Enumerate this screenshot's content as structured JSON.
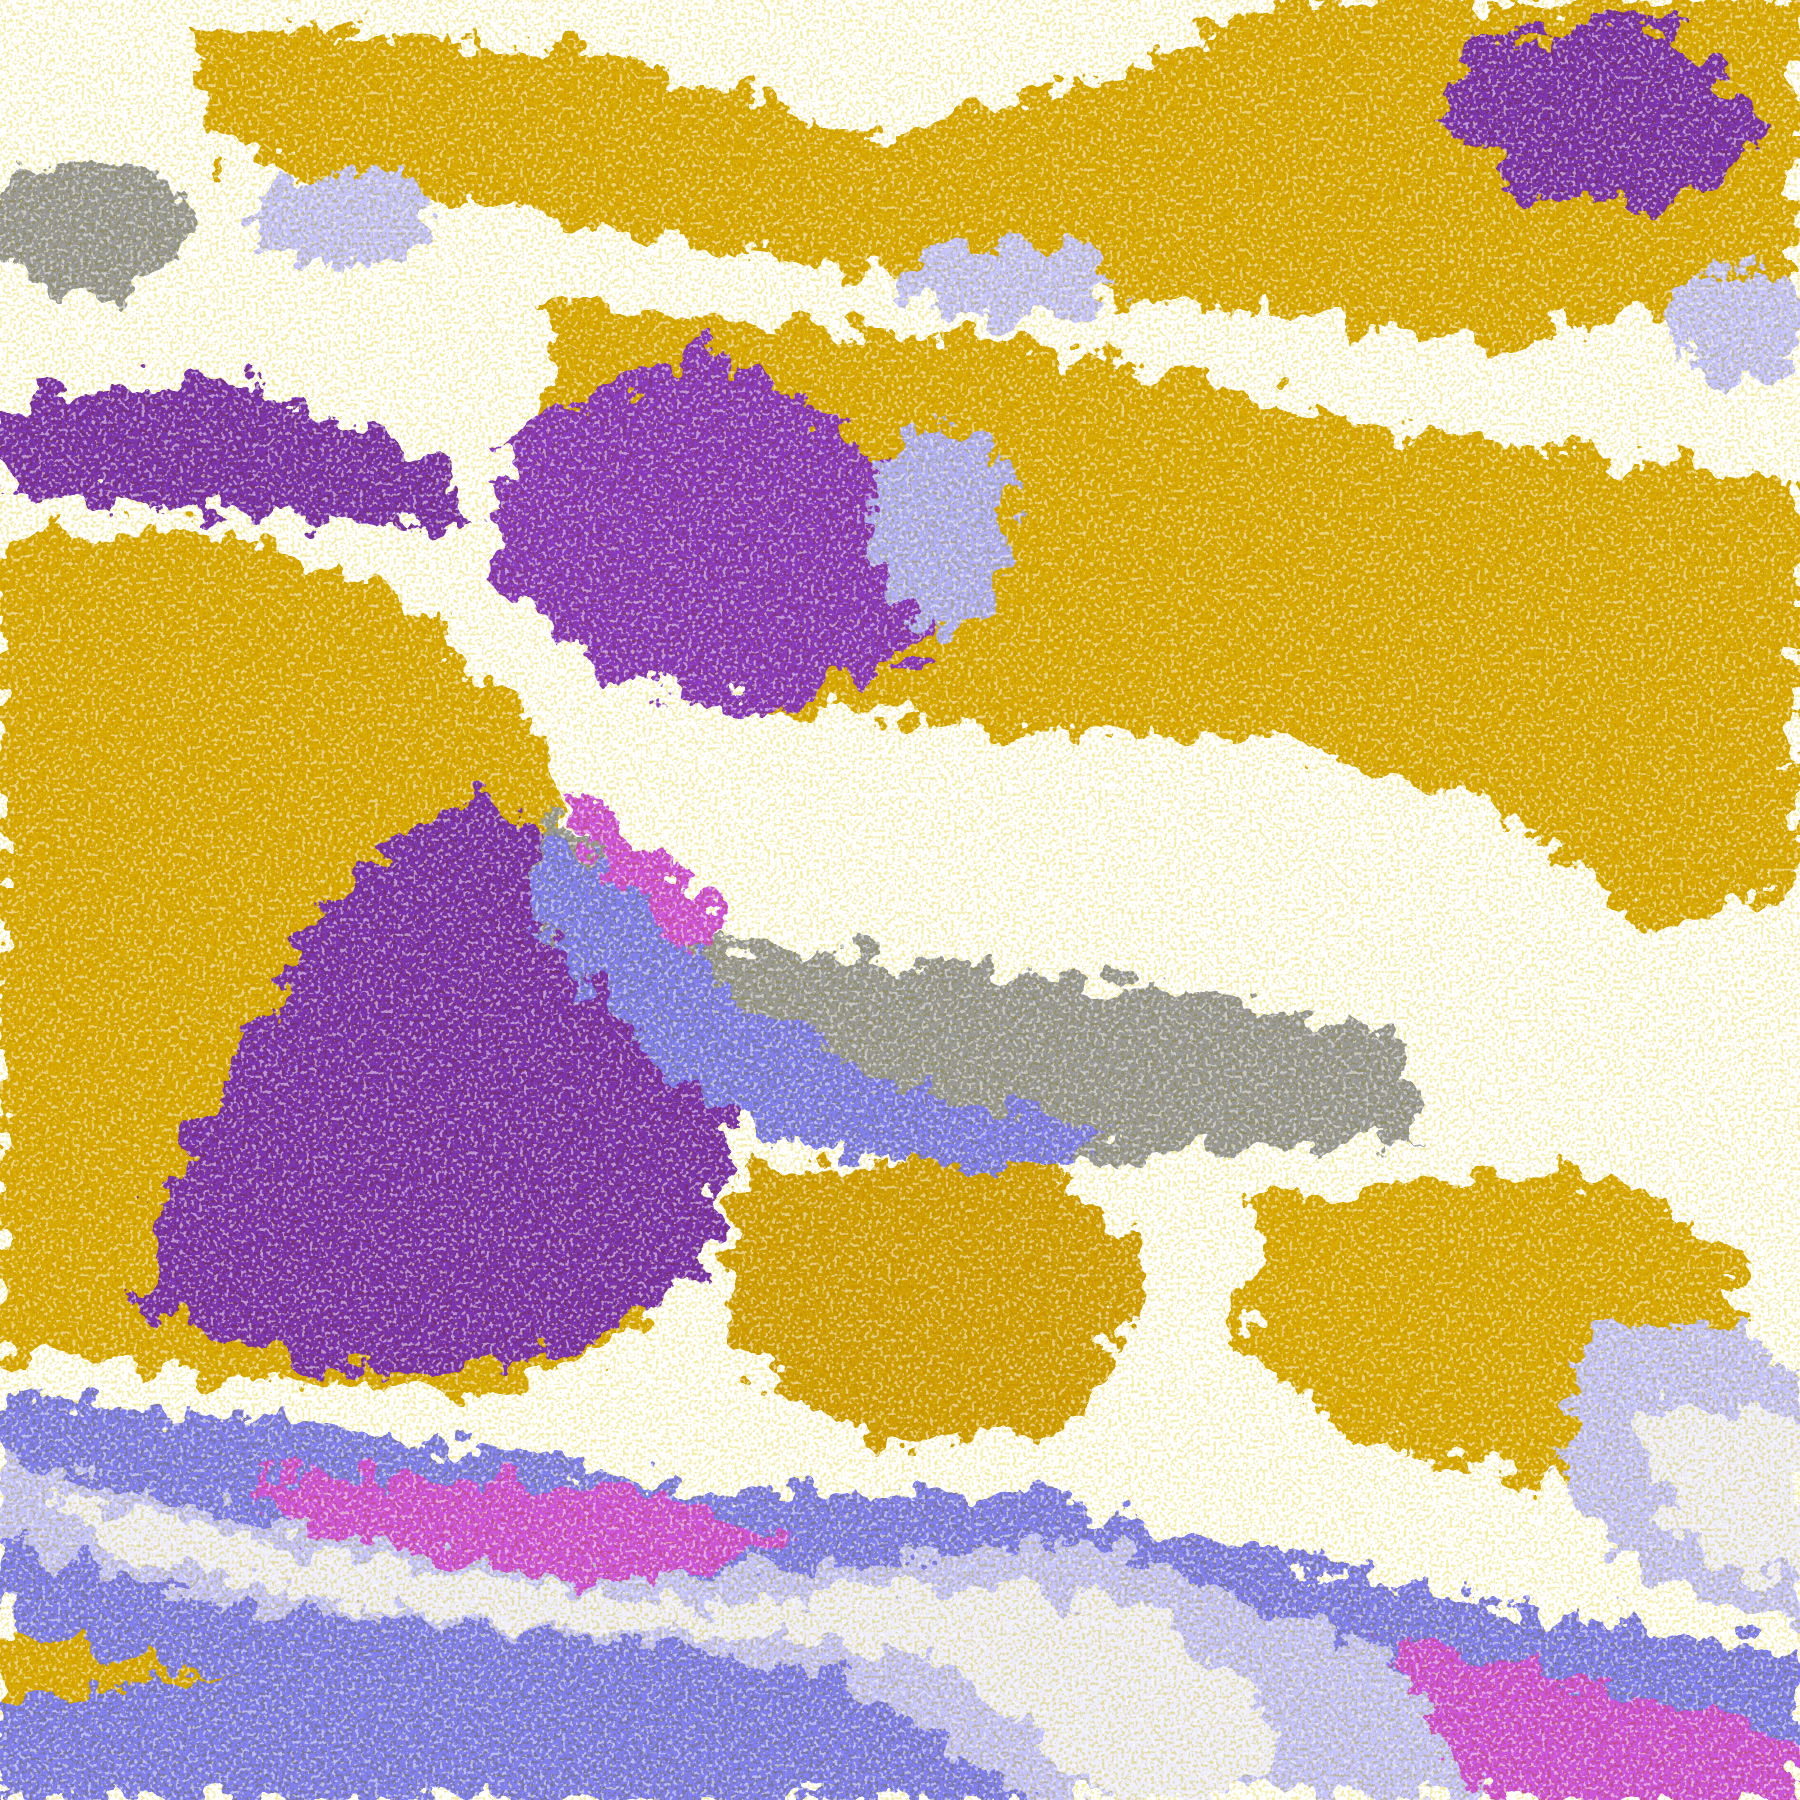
{
  "image": {
    "kind": "false-color satellite cloud imagery",
    "palette": {
      "clear": "#ffffff",
      "gold": "#d8aa00",
      "dark_gold": "#c08e00",
      "purple": "#7b35b0",
      "magenta": "#cc55dd",
      "periwinkle": "#8080f0",
      "lavender": "#c4c4ff",
      "pale_lavender": "#eeeeff",
      "gray": "#9a9a9a"
    }
  }
}
